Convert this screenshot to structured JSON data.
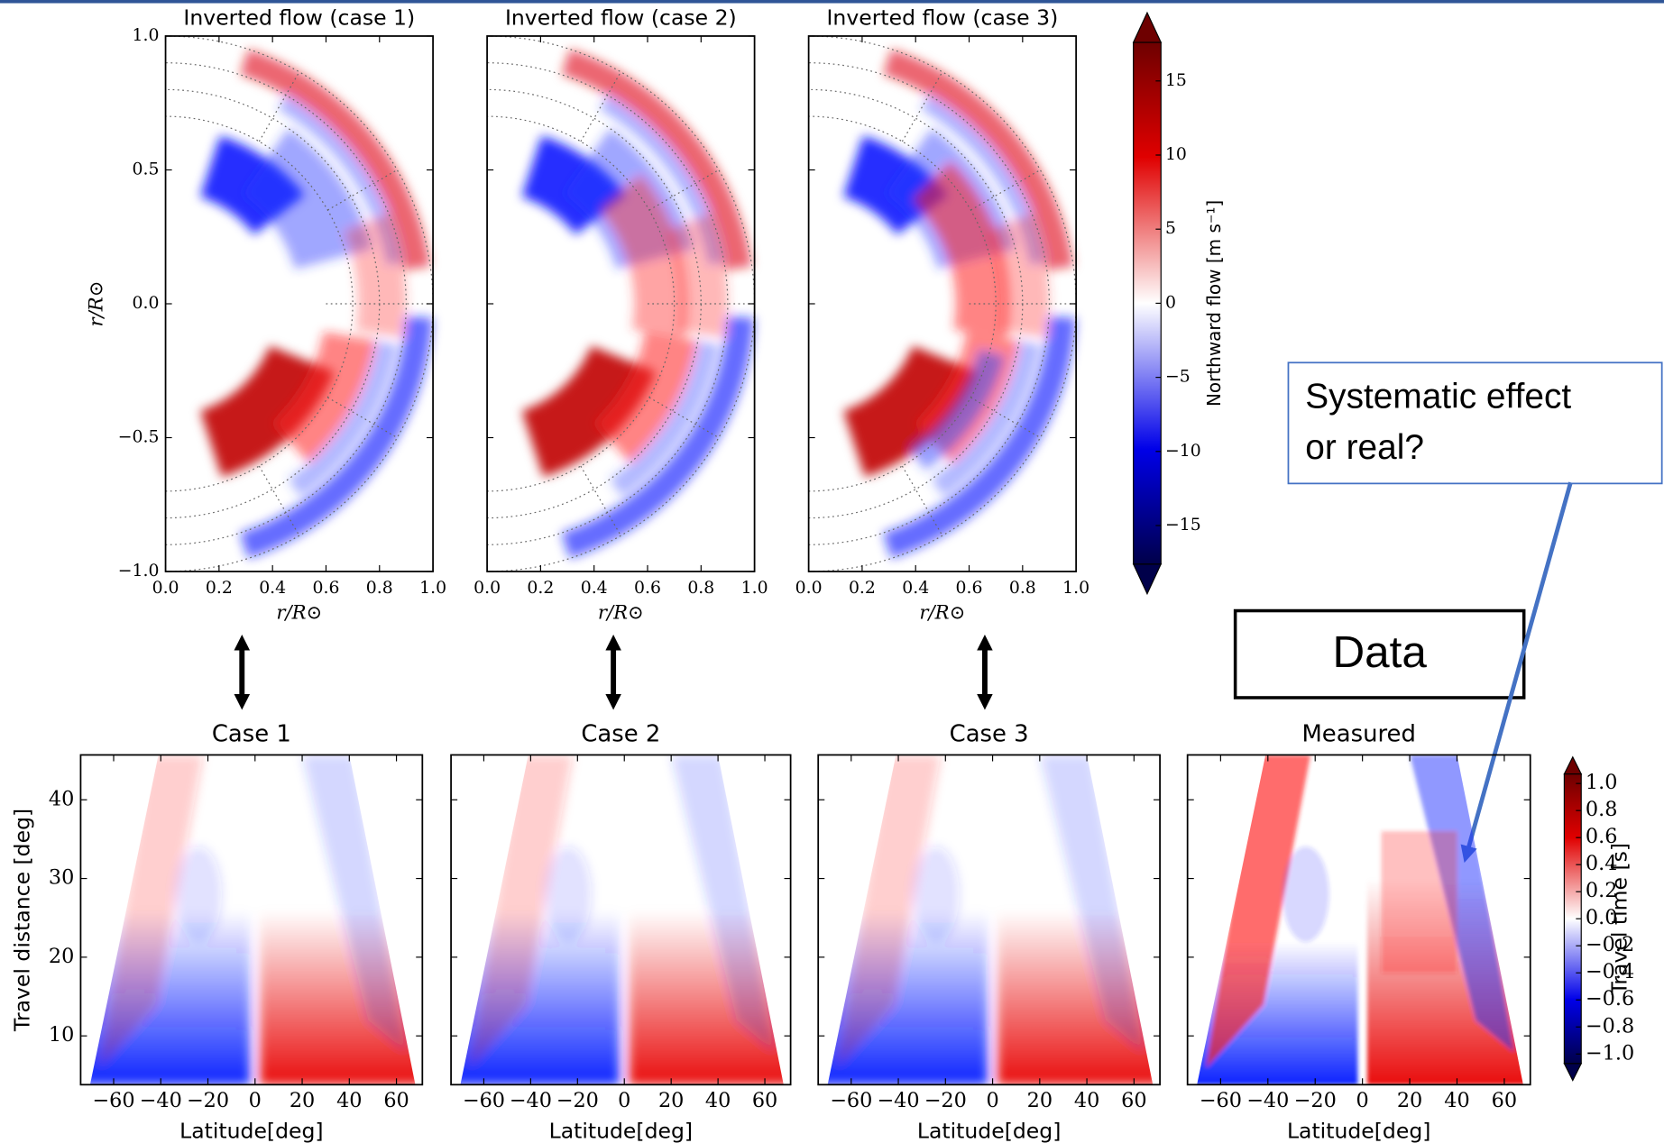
{
  "chart_data": [
    {
      "type": "heatmap",
      "title": "Inverted flow (case 1)",
      "xlabel": "r/R⊙",
      "ylabel": "r/R⊙",
      "xlim": [
        0,
        1
      ],
      "ylim": [
        -1,
        1
      ],
      "xticks": [
        {
          "value": 0,
          "label": "0.0"
        },
        0.2,
        0.4,
        0.6,
        0.8,
        {
          "value": 1,
          "label": "1.0"
        }
      ],
      "yticks": [
        {
          "value": -1,
          "label": "−1.0"
        },
        {
          "value": -0.5,
          "label": "−0.5"
        },
        {
          "value": 0,
          "label": "0.0"
        },
        0.5,
        {
          "value": 1,
          "label": "1.0"
        }
      ]
    },
    {
      "type": "heatmap",
      "title": "Inverted flow (case 2)",
      "xlabel": "r/R⊙",
      "xlim": [
        0,
        1
      ],
      "ylim": [
        -1,
        1
      ],
      "xticks": [
        {
          "value": 0,
          "label": "0.0"
        },
        0.2,
        0.4,
        0.6,
        0.8,
        {
          "value": 1,
          "label": "1.0"
        }
      ],
      "yticks": [
        -1,
        -0.5,
        0,
        0.5,
        1
      ]
    },
    {
      "type": "heatmap",
      "title": "Inverted flow (case 3)",
      "xlabel": "r/R⊙",
      "xlim": [
        0,
        1
      ],
      "ylim": [
        -1,
        1
      ],
      "xticks": [
        {
          "value": 0,
          "label": "0.0"
        },
        0.2,
        0.4,
        0.6,
        0.8,
        {
          "value": 1,
          "label": "1.0"
        }
      ],
      "yticks": [
        -1,
        -0.5,
        0,
        0.5,
        1
      ],
      "colorbar": {
        "label": "Northward flow [m s⁻¹]",
        "lim": [
          -17.6,
          17.6
        ],
        "ticks": [
          {
            "value": -15,
            "label": "−15"
          },
          {
            "value": -10,
            "label": "−10"
          },
          {
            "value": -5,
            "label": "−5"
          },
          0,
          5,
          10,
          15
        ]
      }
    },
    {
      "type": "heatmap",
      "title": "Case 1",
      "xlabel": "Latitude[deg]",
      "ylabel": "Travel distance [deg]",
      "xlim": [
        -74,
        71
      ],
      "ylim": [
        3.8,
        45.7
      ],
      "xticks": [
        {
          "value": -60,
          "label": "−60"
        },
        {
          "value": -40,
          "label": "−40"
        },
        {
          "value": -20,
          "label": "−20"
        },
        0,
        20,
        40,
        60
      ],
      "yticks": [
        10,
        20,
        30,
        40
      ]
    },
    {
      "type": "heatmap",
      "title": "Case 2",
      "xlabel": "Latitude[deg]",
      "xlim": [
        -74,
        71
      ],
      "ylim": [
        3.8,
        45.7
      ],
      "xticks": [
        {
          "value": -60,
          "label": "−60"
        },
        {
          "value": -40,
          "label": "−40"
        },
        {
          "value": -20,
          "label": "−20"
        },
        0,
        20,
        40,
        60
      ],
      "yticks": [
        10,
        20,
        30,
        40
      ]
    },
    {
      "type": "heatmap",
      "title": "Case 3",
      "xlabel": "Latitude[deg]",
      "xlim": [
        -74,
        71
      ],
      "ylim": [
        3.8,
        45.7
      ],
      "xticks": [
        {
          "value": -60,
          "label": "−60"
        },
        {
          "value": -40,
          "label": "−40"
        },
        {
          "value": -20,
          "label": "−20"
        },
        0,
        20,
        40,
        60
      ],
      "yticks": [
        10,
        20,
        30,
        40
      ]
    },
    {
      "type": "heatmap",
      "title": "Measured",
      "xlabel": "Latitude[deg]",
      "xlim": [
        -74,
        71
      ],
      "ylim": [
        3.8,
        45.7
      ],
      "xticks": [
        {
          "value": -60,
          "label": "−60"
        },
        {
          "value": -40,
          "label": "−40"
        },
        {
          "value": -20,
          "label": "−20"
        },
        0,
        20,
        40,
        60
      ],
      "yticks": [
        10,
        20,
        30,
        40
      ],
      "colorbar": {
        "label": "Travel time [s]",
        "lim": [
          -1.07,
          1.07
        ],
        "ticks": [
          {
            "value": -1,
            "label": "−1.0"
          },
          {
            "value": -0.8,
            "label": "−0.8"
          },
          {
            "value": -0.6,
            "label": "−0.6"
          },
          {
            "value": -0.4,
            "label": "−0.4"
          },
          {
            "value": -0.2,
            "label": "−0.2"
          },
          {
            "value": 0,
            "label": "0.0"
          },
          0.2,
          0.4,
          0.6,
          0.8,
          {
            "value": 1,
            "label": "1.0"
          }
        ]
      }
    }
  ],
  "annotations": {
    "question": [
      "Systematic effect",
      "or real?"
    ],
    "data_box": "Data"
  }
}
